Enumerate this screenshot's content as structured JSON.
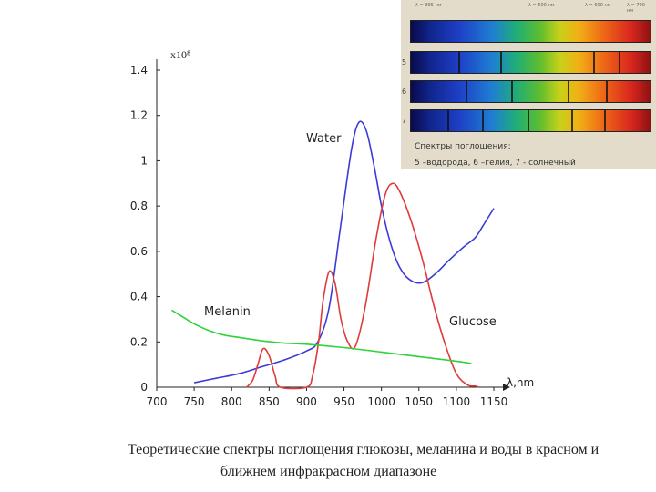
{
  "chart_data": {
    "type": "line",
    "xlabel": "λ,nm",
    "ylabel": "x10⁸",
    "xlim": [
      700,
      1150
    ],
    "ylim": [
      0,
      1.4
    ],
    "x_ticks": [
      "700",
      "750",
      "800",
      "850",
      "900",
      "950",
      "1000",
      "1050",
      "1100",
      "1150"
    ],
    "y_ticks": [
      "0",
      "0.2",
      "0.4",
      "0.6",
      "0.8",
      "1",
      "1.2",
      "1.4"
    ],
    "grid": false,
    "series": [
      {
        "name": "Water",
        "color": "#3b3bd6",
        "x": [
          750,
          780,
          810,
          840,
          870,
          900,
          915,
          930,
          945,
          960,
          970,
          980,
          990,
          1000,
          1010,
          1020,
          1030,
          1040,
          1050,
          1060,
          1075,
          1090,
          1110,
          1125,
          1135,
          1150
        ],
        "y": [
          0.02,
          0.04,
          0.06,
          0.09,
          0.12,
          0.16,
          0.2,
          0.35,
          0.7,
          1.05,
          1.17,
          1.13,
          0.98,
          0.8,
          0.66,
          0.56,
          0.5,
          0.47,
          0.46,
          0.47,
          0.51,
          0.56,
          0.62,
          0.66,
          0.71,
          0.79
        ]
      },
      {
        "name": "Glucose",
        "color": "#e03a3a",
        "x": [
          820,
          828,
          835,
          842,
          850,
          858,
          865,
          900,
          908,
          916,
          922,
          930,
          938,
          946,
          955,
          965,
          978,
          993,
          1005,
          1015,
          1025,
          1040,
          1055,
          1070,
          1085,
          1100,
          1115,
          1125,
          1130
        ],
        "y": [
          0,
          0.03,
          0.1,
          0.17,
          0.14,
          0.05,
          0,
          0,
          0.05,
          0.2,
          0.38,
          0.51,
          0.46,
          0.3,
          0.2,
          0.18,
          0.35,
          0.66,
          0.85,
          0.9,
          0.86,
          0.73,
          0.56,
          0.36,
          0.19,
          0.06,
          0.01,
          0.005,
          0
        ]
      },
      {
        "name": "Melanin",
        "color": "#2fd23a",
        "x": [
          720,
          735,
          750,
          770,
          790,
          810,
          840,
          870,
          900,
          950,
          1000,
          1050,
          1100,
          1120
        ],
        "y": [
          0.34,
          0.31,
          0.28,
          0.25,
          0.23,
          0.22,
          0.205,
          0.195,
          0.19,
          0.175,
          0.155,
          0.135,
          0.115,
          0.105
        ]
      }
    ]
  },
  "inset": {
    "header": [
      "λ = 395 нм",
      "λ = 500 нм",
      "λ = 600 нм",
      "λ = 700 нм"
    ],
    "strip_labels": [
      "",
      "5",
      "6",
      "7"
    ],
    "caption_line1": "Спектры поглощения:",
    "caption_line2": "5 –водорода, 6 –гелия, 7 - солнечный"
  },
  "caption": {
    "line1": "Теоретические спектры поглощения глюкозы, меланина и воды в красном и",
    "line2": "ближнем инфракрасном диапазоне"
  }
}
